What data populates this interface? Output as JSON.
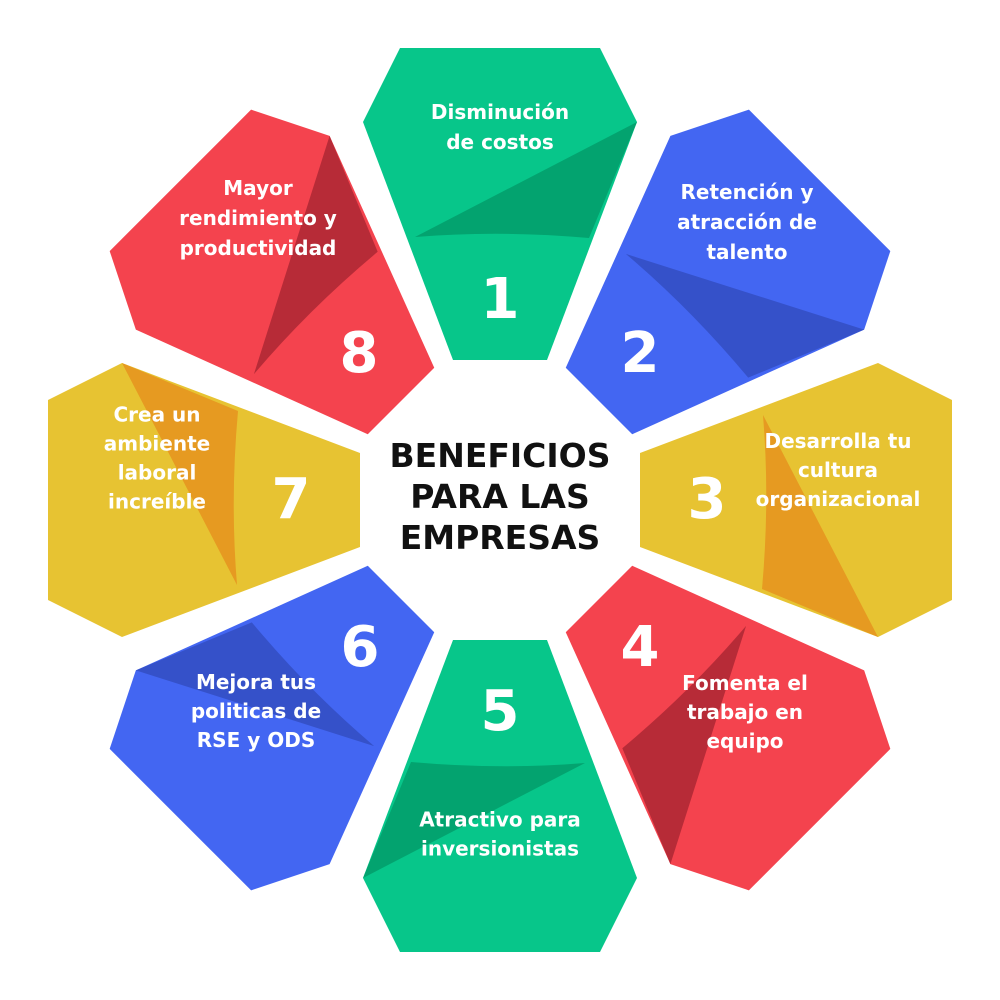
{
  "center": {
    "lines": [
      "BENEFICIOS",
      "PARA LAS",
      "EMPRESAS"
    ]
  },
  "segments": [
    {
      "number": "1",
      "lines": [
        "Disminución",
        "de costos"
      ],
      "color": "#07C68A",
      "shade": "#03A36F"
    },
    {
      "number": "2",
      "lines": [
        "Retención y",
        "atracción de",
        "talento"
      ],
      "color": "#4366F2",
      "shade": "#3551C9"
    },
    {
      "number": "3",
      "lines": [
        "Desarrolla tu",
        "cultura",
        "organizacional"
      ],
      "color": "#E7C332",
      "shade": "#E69A21"
    },
    {
      "number": "4",
      "lines": [
        "Fomenta el",
        "trabajo en",
        "equipo"
      ],
      "color": "#F4434E",
      "shade": "#B72B37"
    },
    {
      "number": "5",
      "lines": [
        "Atractivo para",
        "inversionistas"
      ],
      "color": "#07C68A",
      "shade": "#03A36F"
    },
    {
      "number": "6",
      "lines": [
        "Mejora tus",
        "politicas de",
        "RSE y ODS"
      ],
      "color": "#4366F2",
      "shade": "#3551C9"
    },
    {
      "number": "7",
      "lines": [
        "Crea un",
        "ambiente",
        "laboral",
        "increíble"
      ],
      "color": "#E7C332",
      "shade": "#E69A21"
    },
    {
      "number": "8",
      "lines": [
        "Mayor",
        "rendimiento y",
        "productividad"
      ],
      "color": "#F4434E",
      "shade": "#B72B37"
    }
  ]
}
